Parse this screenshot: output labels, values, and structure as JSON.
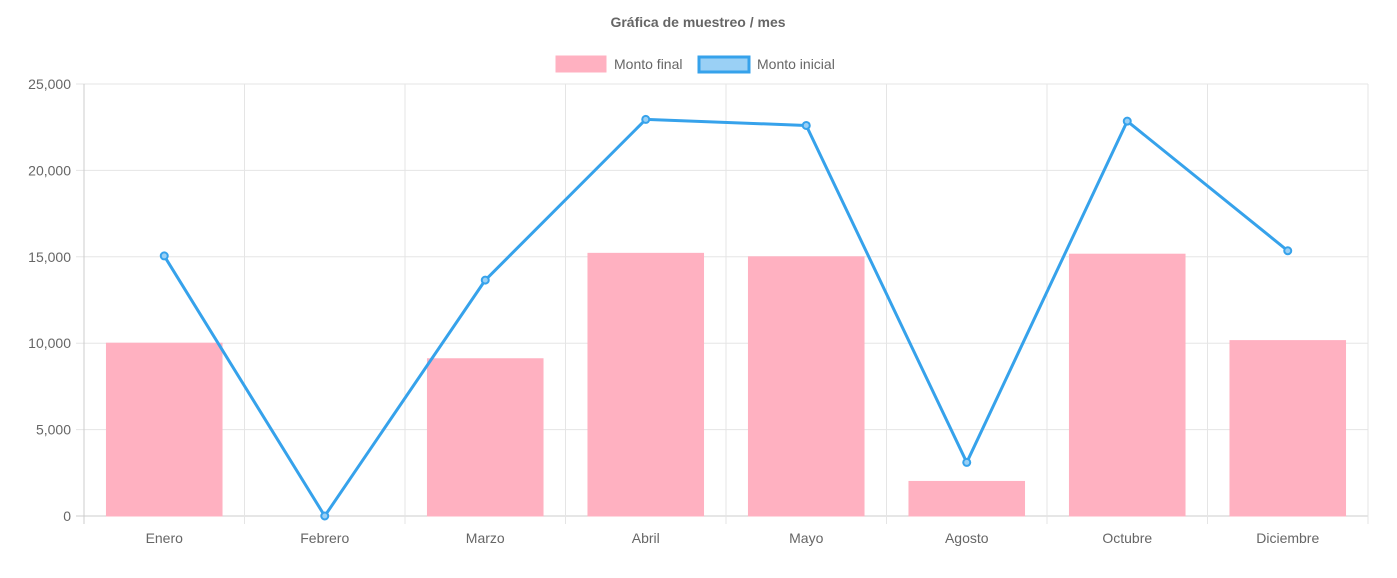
{
  "chart_data": {
    "type": "bar",
    "title": "Gráfica de muestreo / mes",
    "categories": [
      "Enero",
      "Febrero",
      "Marzo",
      "Abril",
      "Mayo",
      "Agosto",
      "Octubre",
      "Diciembre"
    ],
    "series": [
      {
        "name": "Monto final",
        "type": "bar",
        "color": "#FFB1C1",
        "values": [
          10000,
          0,
          9100,
          15200,
          15000,
          2000,
          15150,
          10150
        ]
      },
      {
        "name": "Monto inicial",
        "type": "line",
        "color": "#36A2EB",
        "fill": "#9AD0F5",
        "values": [
          15050,
          0,
          13650,
          22950,
          22600,
          3100,
          22850,
          15350
        ]
      }
    ],
    "ylim": [
      0,
      25000
    ],
    "yticks": [
      0,
      5000,
      10000,
      15000,
      20000,
      25000
    ],
    "ytick_labels": [
      "0",
      "5,000",
      "10,000",
      "15,000",
      "20,000",
      "25,000"
    ],
    "legend_position": "top-center",
    "grid": true,
    "xlabel": "",
    "ylabel": ""
  }
}
